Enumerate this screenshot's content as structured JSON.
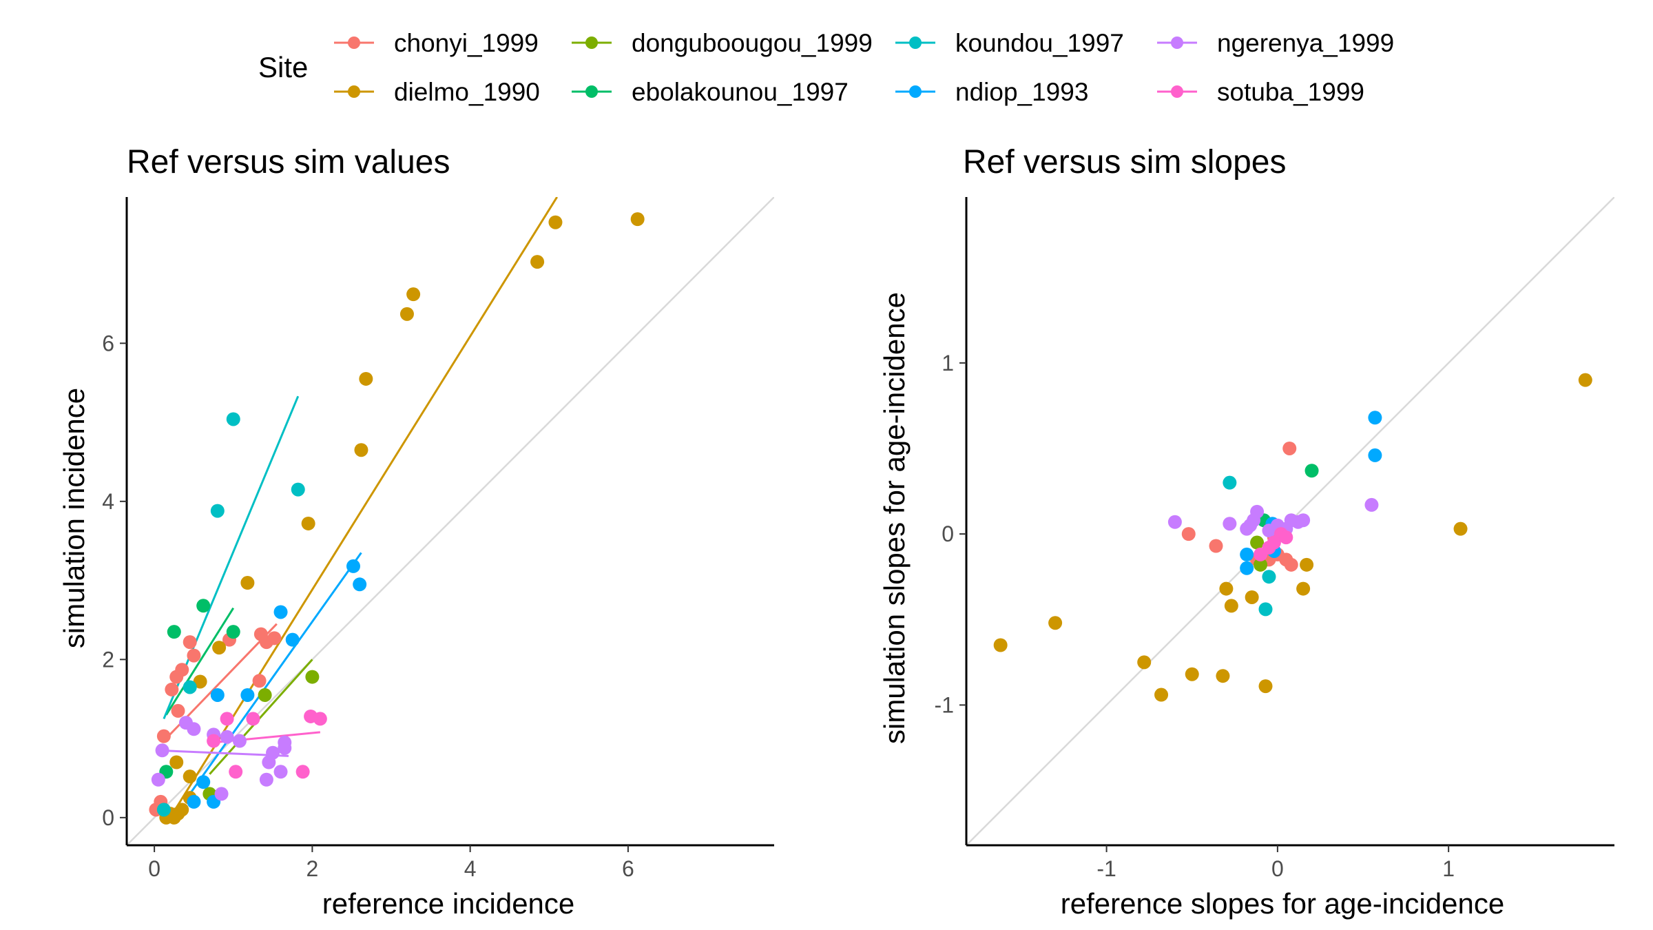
{
  "legend": {
    "title": "Site",
    "entries": [
      {
        "name": "chonyi_1999",
        "color": "#F8766D"
      },
      {
        "name": "dielmo_1990",
        "color": "#CD9600"
      },
      {
        "name": "donguboougou_1999",
        "color": "#7CAE00"
      },
      {
        "name": "ebolakounou_1997",
        "color": "#00BE67"
      },
      {
        "name": "koundou_1997",
        "color": "#00BFC4"
      },
      {
        "name": "ndiop_1993",
        "color": "#00A9FF"
      },
      {
        "name": "ngerenya_1999",
        "color": "#C77CFF"
      },
      {
        "name": "sotuba_1999",
        "color": "#FF61CC"
      }
    ]
  },
  "chart_data": [
    {
      "type": "scatter",
      "title": "Ref versus sim values",
      "xlabel": "reference incidence",
      "ylabel": "simulation incidence",
      "xlim": [
        -0.35,
        7.85
      ],
      "ylim": [
        -0.35,
        7.85
      ],
      "xticks": [
        0,
        2,
        4,
        6
      ],
      "yticks": [
        0,
        2,
        4,
        6
      ],
      "identity_line": true,
      "grid": false,
      "series": [
        {
          "name": "chonyi_1999",
          "points": [
            [
              0.02,
              0.1
            ],
            [
              0.08,
              0.2
            ],
            [
              0.12,
              1.03
            ],
            [
              0.22,
              1.62
            ],
            [
              0.28,
              1.78
            ],
            [
              0.35,
              1.87
            ],
            [
              0.45,
              2.22
            ],
            [
              0.5,
              2.05
            ],
            [
              0.95,
              2.25
            ],
            [
              1.33,
              1.73
            ],
            [
              1.35,
              2.32
            ],
            [
              1.42,
              2.22
            ],
            [
              1.52,
              2.27
            ],
            [
              0.3,
              1.35
            ]
          ],
          "fit": [
            [
              0.1,
              0.95
            ],
            [
              1.55,
              2.45
            ]
          ]
        },
        {
          "name": "dielmo_1990",
          "points": [
            [
              0.15,
              0.0
            ],
            [
              0.2,
              0.05
            ],
            [
              0.25,
              0.0
            ],
            [
              0.3,
              0.05
            ],
            [
              0.35,
              0.1
            ],
            [
              0.18,
              0.02
            ],
            [
              0.28,
              0.7
            ],
            [
              0.45,
              0.52
            ],
            [
              0.45,
              0.25
            ],
            [
              0.58,
              1.72
            ],
            [
              0.82,
              2.15
            ],
            [
              1.18,
              2.97
            ],
            [
              1.95,
              3.72
            ],
            [
              2.62,
              4.65
            ],
            [
              2.68,
              5.55
            ],
            [
              3.2,
              6.37
            ],
            [
              3.28,
              6.62
            ],
            [
              4.85,
              7.03
            ],
            [
              5.08,
              7.53
            ],
            [
              6.12,
              7.57
            ]
          ],
          "fit": [
            [
              0.2,
              0.0
            ],
            [
              5.1,
              7.85
            ]
          ]
        },
        {
          "name": "donguboougou_1999",
          "points": [
            [
              0.7,
              0.3
            ],
            [
              1.4,
              1.55
            ],
            [
              2.0,
              1.78
            ]
          ],
          "fit": [
            [
              0.7,
              0.55
            ],
            [
              2.0,
              2.0
            ]
          ]
        },
        {
          "name": "ebolakounou_1997",
          "points": [
            [
              0.15,
              0.58
            ],
            [
              0.25,
              2.35
            ],
            [
              0.62,
              2.68
            ],
            [
              1.0,
              2.35
            ]
          ],
          "fit": [
            [
              0.15,
              1.3
            ],
            [
              1.0,
              2.65
            ]
          ]
        },
        {
          "name": "koundou_1997",
          "points": [
            [
              0.12,
              0.1
            ],
            [
              0.45,
              1.65
            ],
            [
              0.8,
              3.88
            ],
            [
              1.0,
              5.04
            ],
            [
              1.82,
              4.15
            ]
          ],
          "fit": [
            [
              0.12,
              1.25
            ],
            [
              1.82,
              5.33
            ]
          ]
        },
        {
          "name": "ndiop_1993",
          "points": [
            [
              0.5,
              0.2
            ],
            [
              0.62,
              0.45
            ],
            [
              0.75,
              0.2
            ],
            [
              0.8,
              1.55
            ],
            [
              1.18,
              1.55
            ],
            [
              1.6,
              2.6
            ],
            [
              1.75,
              2.25
            ],
            [
              2.52,
              3.18
            ],
            [
              2.6,
              2.95
            ]
          ],
          "fit": [
            [
              0.45,
              0.3
            ],
            [
              2.62,
              3.35
            ]
          ]
        },
        {
          "name": "ngerenya_1999",
          "points": [
            [
              0.05,
              0.48
            ],
            [
              0.1,
              0.85
            ],
            [
              0.4,
              1.2
            ],
            [
              0.5,
              1.12
            ],
            [
              0.75,
              1.05
            ],
            [
              0.92,
              1.02
            ],
            [
              1.08,
              0.97
            ],
            [
              1.42,
              0.48
            ],
            [
              1.45,
              0.7
            ],
            [
              1.5,
              0.82
            ],
            [
              1.6,
              0.58
            ],
            [
              1.65,
              0.95
            ],
            [
              1.65,
              0.88
            ],
            [
              0.85,
              0.3
            ]
          ],
          "fit": [
            [
              0.05,
              0.85
            ],
            [
              1.7,
              0.78
            ]
          ]
        },
        {
          "name": "sotuba_1999",
          "points": [
            [
              0.75,
              0.97
            ],
            [
              0.92,
              1.25
            ],
            [
              1.03,
              0.58
            ],
            [
              1.25,
              1.25
            ],
            [
              1.88,
              0.58
            ],
            [
              1.98,
              1.28
            ],
            [
              2.1,
              1.25
            ]
          ],
          "fit": [
            [
              0.75,
              0.95
            ],
            [
              2.1,
              1.08
            ]
          ]
        }
      ]
    },
    {
      "type": "scatter",
      "title": "Ref versus sim slopes",
      "xlabel": "reference slopes for age-incidence",
      "ylabel": "simulation slopes for age-incidence",
      "xlim": [
        -1.82,
        1.97
      ],
      "ylim": [
        -1.82,
        1.97
      ],
      "xticks": [
        -1,
        0,
        1
      ],
      "yticks": [
        -1,
        0,
        1
      ],
      "identity_line": true,
      "grid": false,
      "series": [
        {
          "name": "chonyi_1999",
          "points": [
            [
              -0.52,
              0.0
            ],
            [
              -0.36,
              -0.07
            ],
            [
              -0.12,
              -0.15
            ],
            [
              -0.08,
              -0.12
            ],
            [
              -0.05,
              -0.15
            ],
            [
              0.0,
              -0.12
            ],
            [
              0.05,
              -0.15
            ],
            [
              0.08,
              -0.18
            ],
            [
              0.07,
              0.5
            ],
            [
              -0.02,
              -0.02
            ]
          ]
        },
        {
          "name": "dielmo_1990",
          "points": [
            [
              -1.62,
              -0.65
            ],
            [
              -1.3,
              -0.52
            ],
            [
              -0.78,
              -0.75
            ],
            [
              -0.68,
              -0.94
            ],
            [
              -0.5,
              -0.82
            ],
            [
              -0.32,
              -0.83
            ],
            [
              -0.3,
              -0.32
            ],
            [
              -0.27,
              -0.42
            ],
            [
              -0.15,
              -0.37
            ],
            [
              -0.07,
              -0.89
            ],
            [
              0.15,
              -0.32
            ],
            [
              0.17,
              -0.18
            ],
            [
              1.07,
              0.03
            ],
            [
              1.8,
              0.9
            ]
          ]
        },
        {
          "name": "donguboougou_1999",
          "points": [
            [
              -0.12,
              -0.05
            ],
            [
              -0.1,
              -0.18
            ]
          ]
        },
        {
          "name": "ebolakounou_1997",
          "points": [
            [
              -0.08,
              0.08
            ],
            [
              0.2,
              0.37
            ]
          ]
        },
        {
          "name": "koundou_1997",
          "points": [
            [
              -0.28,
              0.3
            ],
            [
              -0.07,
              -0.44
            ],
            [
              -0.05,
              -0.25
            ]
          ]
        },
        {
          "name": "ndiop_1993",
          "points": [
            [
              -0.18,
              -0.12
            ],
            [
              -0.18,
              -0.2
            ],
            [
              -0.03,
              0.06
            ],
            [
              -0.02,
              -0.1
            ],
            [
              0.57,
              0.68
            ],
            [
              0.57,
              0.46
            ]
          ]
        },
        {
          "name": "ngerenya_1999",
          "points": [
            [
              -0.6,
              0.07
            ],
            [
              -0.28,
              0.06
            ],
            [
              -0.18,
              0.03
            ],
            [
              -0.16,
              0.05
            ],
            [
              -0.12,
              0.13
            ],
            [
              -0.05,
              0.02
            ],
            [
              0.0,
              0.05
            ],
            [
              0.05,
              0.03
            ],
            [
              0.08,
              0.08
            ],
            [
              0.12,
              0.07
            ],
            [
              0.15,
              0.08
            ],
            [
              0.55,
              0.17
            ],
            [
              -0.14,
              0.08
            ]
          ]
        },
        {
          "name": "sotuba_1999",
          "points": [
            [
              -0.1,
              -0.12
            ],
            [
              -0.05,
              -0.08
            ],
            [
              -0.02,
              -0.05
            ],
            [
              0.02,
              0.0
            ],
            [
              0.05,
              -0.02
            ]
          ]
        }
      ]
    }
  ]
}
